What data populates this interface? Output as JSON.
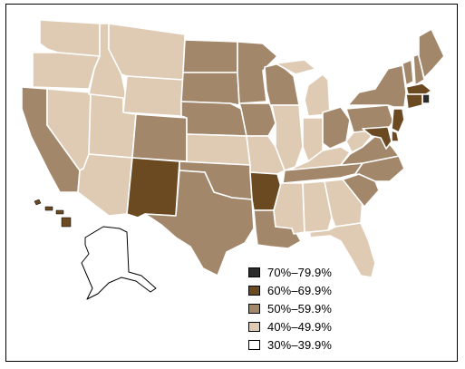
{
  "colors": {
    "c70": "#2b2b2b",
    "c60": "#6b4a22",
    "c50": "#a3876a",
    "c40": "#dfcbb4",
    "c30": "#ffffff"
  },
  "legend": [
    {
      "label": "70%–79.9%",
      "color": "#2b2b2b"
    },
    {
      "label": "60%–69.9%",
      "color": "#6b4a22"
    },
    {
      "label": "50%–59.9%",
      "color": "#a3876a"
    },
    {
      "label": "40%–49.9%",
      "color": "#dfcbb4"
    },
    {
      "label": "30%–39.9%",
      "color": "#ffffff"
    }
  ],
  "states": {
    "WA": "40%–49.9%",
    "OR": "40%–49.9%",
    "CA": "50%–59.9%",
    "NV": "40%–49.9%",
    "ID": "40%–49.9%",
    "MT": "40%–49.9%",
    "WY": "40%–49.9%",
    "UT": "40%–49.9%",
    "AZ": "40%–49.9%",
    "CO": "50%–59.9%",
    "NM": "60%–69.9%",
    "ND": "50%–59.9%",
    "SD": "50%–59.9%",
    "NE": "50%–59.9%",
    "KS": "40%–49.9%",
    "OK": "50%–59.9%",
    "TX": "50%–59.9%",
    "MN": "50%–59.9%",
    "IA": "50%–59.9%",
    "MO": "40%–49.9%",
    "AR": "60%–69.9%",
    "LA": "50%–59.9%",
    "WI": "50%–59.9%",
    "IL": "40%–49.9%",
    "MI": "40%–49.9%",
    "IN": "40%–49.9%",
    "OH": "50%–59.9%",
    "KY": "40%–49.9%",
    "TN": "50%–59.9%",
    "MS": "40%–49.9%",
    "AL": "40%–49.9%",
    "GA": "40%–49.9%",
    "FL": "40%–49.9%",
    "SC": "50%–59.9%",
    "NC": "50%–59.9%",
    "VA": "50%–59.9%",
    "WV": "40%–49.9%",
    "PA": "50%–59.9%",
    "NY": "50%–59.9%",
    "VT": "50%–59.9%",
    "NH": "50%–59.9%",
    "ME": "50%–59.9%",
    "MA": "60%–69.9%",
    "RI": "70%–79.9%",
    "CT": "60%–69.9%",
    "NJ": "60%–69.9%",
    "DE": "60%–69.9%",
    "MD": "60%–69.9%",
    "AK": "30%–39.9%",
    "HI": "60%–69.9%"
  }
}
